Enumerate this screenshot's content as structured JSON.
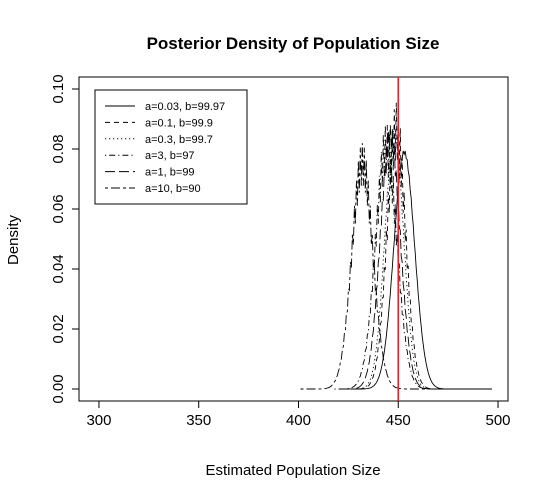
{
  "chart_data": {
    "type": "line",
    "title": "Posterior Density of Population Size",
    "xlabel": "Estimated Population Size",
    "ylabel": "Density",
    "xlim": [
      290,
      505
    ],
    "ylim": [
      -0.004,
      0.104
    ],
    "xticks": [
      "300",
      "350",
      "400",
      "450",
      "500"
    ],
    "yticks": [
      "0.00",
      "0.02",
      "0.04",
      "0.06",
      "0.08",
      "0.10"
    ],
    "xtick_values": [
      300,
      350,
      400,
      450,
      500
    ],
    "ytick_values": [
      0,
      0.02,
      0.04,
      0.06,
      0.08,
      0.1
    ],
    "grid": false,
    "legend_position": "top-left",
    "reference_line": {
      "x": 450,
      "color": "#e8202a"
    },
    "series": [
      {
        "name": "a=0.03, b=99.97",
        "dash": "solid",
        "mean": 453,
        "sd": 5.2,
        "peak": 0.079,
        "from": 428,
        "to": 497
      },
      {
        "name": "a=0.1, b=99.9",
        "dash": "dashed",
        "mean": 449,
        "sd": 4.7,
        "peak": 0.086,
        "from": 426,
        "to": 497
      },
      {
        "name": "a=0.3, b=99.7",
        "dash": "dotted",
        "mean": 448,
        "sd": 4.7,
        "peak": 0.085,
        "from": 424,
        "to": 497
      },
      {
        "name": "a=3, b=97",
        "dash": "dotdash",
        "mean": 444,
        "sd": 5.4,
        "peak": 0.08,
        "from": 418,
        "to": 497
      },
      {
        "name": "a=1, b=99",
        "dash": "longdash",
        "mean": 446,
        "sd": 5.0,
        "peak": 0.084,
        "from": 422,
        "to": 497
      },
      {
        "name": "a=10, b=90",
        "dash": "twodash",
        "mean": 432,
        "sd": 5.3,
        "peak": 0.075,
        "from": 401,
        "to": 497
      }
    ]
  }
}
